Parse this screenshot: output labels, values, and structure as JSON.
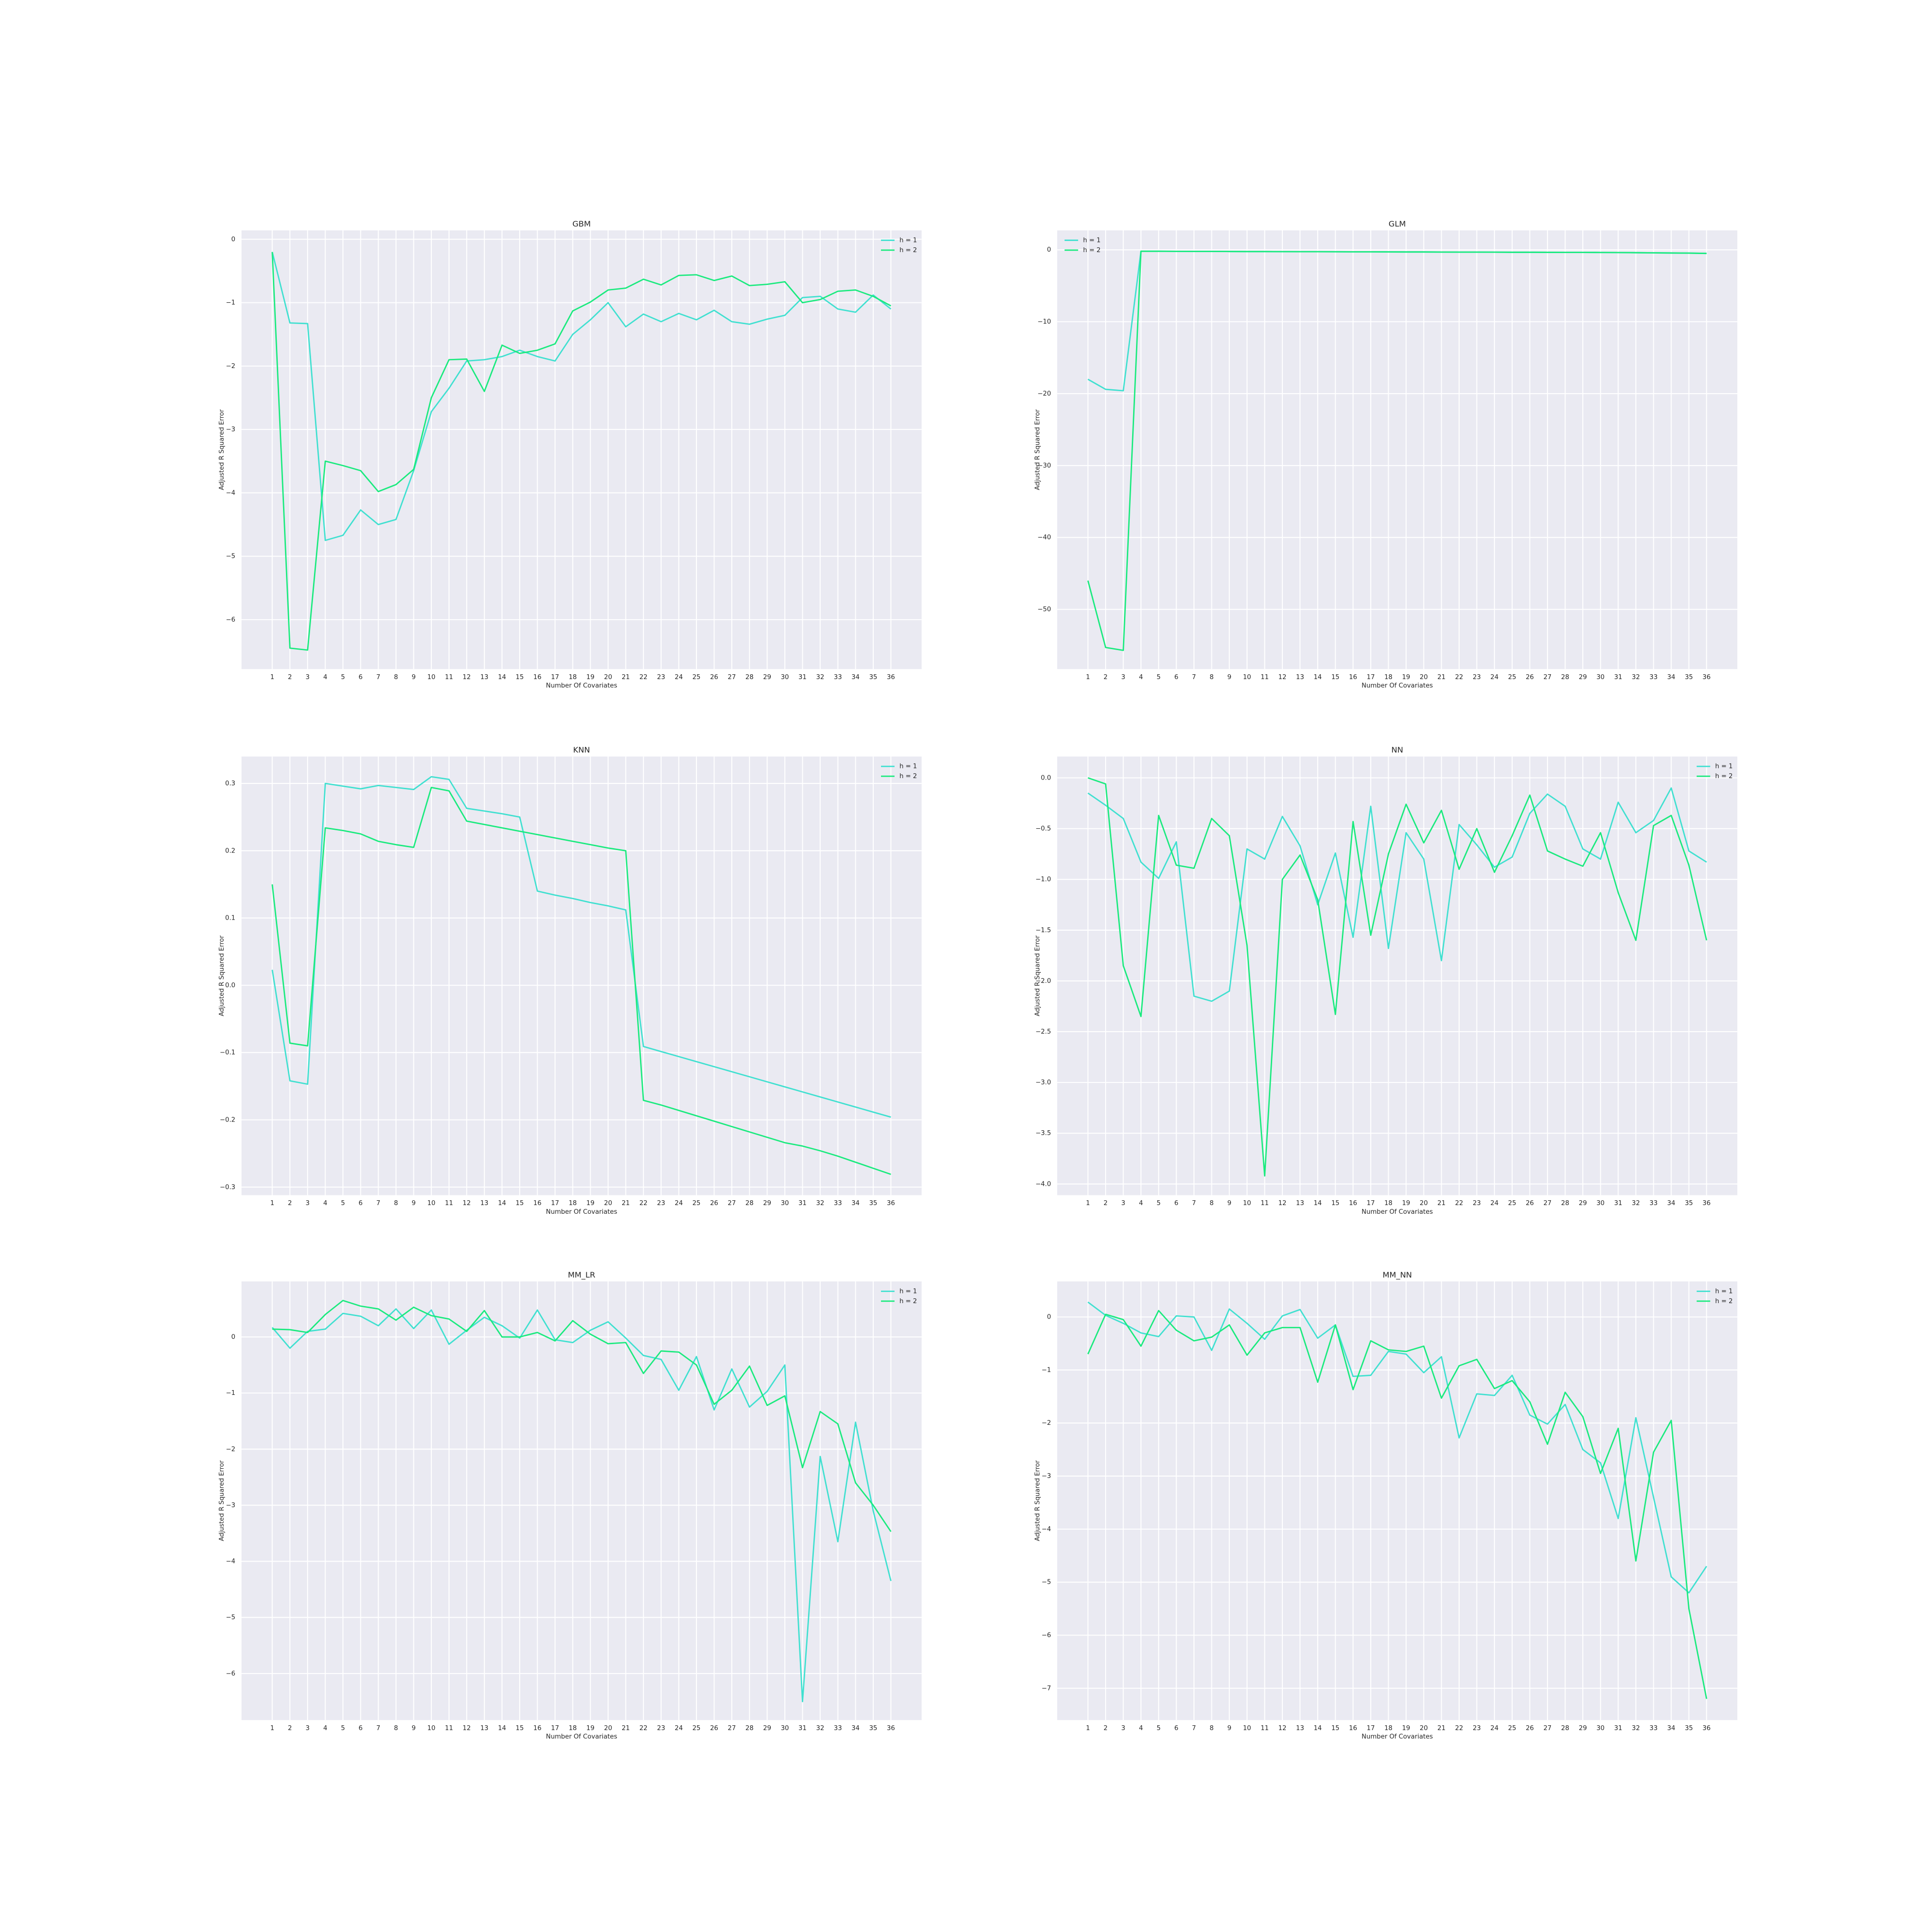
{
  "chart_data": [
    {
      "type": "line",
      "title": "GBM",
      "xlabel": "Number Of Covariates",
      "ylabel": "Adjusted R Squared Error",
      "legend": "upper right",
      "grid": true,
      "x": [
        1,
        2,
        3,
        4,
        5,
        6,
        7,
        8,
        9,
        10,
        11,
        12,
        13,
        14,
        15,
        16,
        17,
        18,
        19,
        20,
        21,
        22,
        23,
        24,
        25,
        26,
        27,
        28,
        29,
        30,
        31,
        32,
        33,
        34,
        35,
        36
      ],
      "xlim": [
        -0.74,
        37.74
      ],
      "xticks": [
        1,
        2,
        3,
        4,
        5,
        6,
        7,
        8,
        9,
        10,
        11,
        12,
        13,
        14,
        15,
        16,
        17,
        18,
        19,
        20,
        21,
        22,
        23,
        24,
        25,
        26,
        27,
        28,
        29,
        30,
        31,
        32,
        33,
        34,
        35,
        36
      ],
      "ylim": [
        -6.78,
        0.14
      ],
      "yticks": [
        0,
        {
          "value": -1,
          "label": "−1"
        },
        {
          "value": -2,
          "label": "−2"
        },
        {
          "value": -3,
          "label": "−3"
        },
        {
          "value": -4,
          "label": "−4"
        },
        {
          "value": -5,
          "label": "−5"
        },
        {
          "value": -6,
          "label": "−6"
        }
      ],
      "series": [
        {
          "name": "h = 1",
          "color": "#40e0d0",
          "values": [
            -0.2,
            -1.32,
            -1.33,
            -4.75,
            -4.67,
            -4.27,
            -4.5,
            -4.42,
            -3.65,
            -2.72,
            -2.35,
            -1.92,
            -1.9,
            -1.85,
            -1.75,
            -1.85,
            -1.92,
            -1.5,
            -1.27,
            -1.0,
            -1.38,
            -1.18,
            -1.3,
            -1.17,
            -1.27,
            -1.12,
            -1.3,
            -1.34,
            -1.26,
            -1.2,
            -0.92,
            -0.9,
            -1.1,
            -1.15,
            -0.88,
            -1.1
          ]
        },
        {
          "name": "h = 2",
          "color": "#1aea7e",
          "values": [
            -0.2,
            -6.45,
            -6.48,
            -3.5,
            -3.57,
            -3.65,
            -3.98,
            -3.87,
            -3.63,
            -2.5,
            -1.9,
            -1.89,
            -2.4,
            -1.67,
            -1.8,
            -1.75,
            -1.65,
            -1.13,
            -0.99,
            -0.8,
            -0.77,
            -0.63,
            -0.72,
            -0.57,
            -0.56,
            -0.65,
            -0.58,
            -0.73,
            -0.71,
            -0.67,
            -1.0,
            -0.95,
            -0.82,
            -0.8,
            -0.9,
            -1.05
          ]
        }
      ]
    },
    {
      "type": "line",
      "title": "GLM",
      "xlabel": "Number Of Covariates",
      "ylabel": "Adjusted R Squared Error",
      "legend": "upper left",
      "grid": true,
      "x": [
        1,
        2,
        3,
        4,
        5,
        6,
        7,
        8,
        9,
        10,
        11,
        12,
        13,
        14,
        15,
        16,
        17,
        18,
        19,
        20,
        21,
        22,
        23,
        24,
        25,
        26,
        27,
        28,
        29,
        30,
        31,
        32,
        33,
        34,
        35,
        36
      ],
      "xlim": [
        -0.74,
        37.74
      ],
      "xticks": [
        1,
        2,
        3,
        4,
        5,
        6,
        7,
        8,
        9,
        10,
        11,
        12,
        13,
        14,
        15,
        16,
        17,
        18,
        19,
        20,
        21,
        22,
        23,
        24,
        25,
        26,
        27,
        28,
        29,
        30,
        31,
        32,
        33,
        34,
        35,
        36
      ],
      "ylim": [
        -58.3,
        2.7
      ],
      "yticks": [
        0,
        {
          "value": -10,
          "label": "−10"
        },
        {
          "value": -20,
          "label": "−20"
        },
        {
          "value": -30,
          "label": "−30"
        },
        {
          "value": -40,
          "label": "−40"
        },
        {
          "value": -50,
          "label": "−50"
        }
      ],
      "series": [
        {
          "name": "h = 1",
          "color": "#40e0d0",
          "values": [
            -18,
            -19.4,
            -19.6,
            -0.2,
            -0.2,
            -0.21,
            -0.22,
            -0.22,
            -0.23,
            -0.24,
            -0.24,
            -0.25,
            -0.26,
            -0.26,
            -0.27,
            -0.28,
            -0.28,
            -0.29,
            -0.3,
            -0.3,
            -0.31,
            -0.32,
            -0.32,
            -0.33,
            -0.34,
            -0.34,
            -0.35,
            -0.36,
            -0.36,
            -0.37,
            -0.38,
            -0.4,
            -0.42,
            -0.44,
            -0.46,
            -0.5
          ]
        },
        {
          "name": "h = 2",
          "color": "#1aea7e",
          "values": [
            -46,
            -55.3,
            -55.7,
            -0.2,
            -0.2,
            -0.21,
            -0.22,
            -0.22,
            -0.23,
            -0.24,
            -0.24,
            -0.25,
            -0.26,
            -0.26,
            -0.27,
            -0.28,
            -0.28,
            -0.29,
            -0.3,
            -0.3,
            -0.31,
            -0.32,
            -0.32,
            -0.33,
            -0.34,
            -0.34,
            -0.35,
            -0.36,
            -0.36,
            -0.37,
            -0.38,
            -0.4,
            -0.42,
            -0.44,
            -0.46,
            -0.5
          ]
        }
      ]
    },
    {
      "type": "line",
      "title": "KNN",
      "xlabel": "Number Of Covariates",
      "ylabel": "Adjusted R Squared Error",
      "legend": "upper right",
      "grid": true,
      "x": [
        1,
        2,
        3,
        4,
        5,
        6,
        7,
        8,
        9,
        10,
        11,
        12,
        13,
        14,
        15,
        16,
        17,
        18,
        19,
        20,
        21,
        22,
        23,
        24,
        25,
        26,
        27,
        28,
        29,
        30,
        31,
        32,
        33,
        34,
        35,
        36
      ],
      "xlim": [
        -0.74,
        37.74
      ],
      "xticks": [
        1,
        2,
        3,
        4,
        5,
        6,
        7,
        8,
        9,
        10,
        11,
        12,
        13,
        14,
        15,
        16,
        17,
        18,
        19,
        20,
        21,
        22,
        23,
        24,
        25,
        26,
        27,
        28,
        29,
        30,
        31,
        32,
        33,
        34,
        35,
        36
      ],
      "ylim": [
        -0.312,
        0.34
      ],
      "yticks": [
        0.3,
        0.2,
        0.1,
        {
          "value": 0,
          "label": "0.0"
        },
        {
          "value": -0.1,
          "label": "−0.1"
        },
        {
          "value": -0.2,
          "label": "−0.2"
        },
        {
          "value": -0.3,
          "label": "−0.3"
        }
      ],
      "series": [
        {
          "name": "h = 1",
          "color": "#40e0d0",
          "values": [
            0.023,
            -0.142,
            -0.147,
            0.3,
            0.296,
            0.292,
            0.297,
            0.294,
            0.291,
            0.31,
            0.306,
            0.263,
            0.259,
            0.255,
            0.25,
            0.14,
            0.134,
            0.129,
            0.123,
            0.118,
            0.112,
            -0.091,
            -0.0985,
            -0.106,
            -0.1135,
            -0.121,
            -0.1285,
            -0.136,
            -0.1435,
            -0.151,
            -0.1585,
            -0.166,
            -0.1735,
            -0.181,
            -0.1885,
            -0.196
          ]
        },
        {
          "name": "h = 2",
          "color": "#1aea7e",
          "values": [
            0.15,
            -0.086,
            -0.09,
            0.234,
            0.23,
            0.225,
            0.214,
            0.209,
            0.205,
            0.294,
            0.289,
            0.244,
            0.239,
            0.234,
            0.229,
            0.224,
            0.219,
            0.214,
            0.209,
            0.204,
            0.2,
            -0.171,
            -0.178,
            -0.186,
            -0.194,
            -0.202,
            -0.21,
            -0.218,
            -0.226,
            -0.234,
            -0.239,
            -0.246,
            -0.254,
            -0.263,
            -0.272,
            -0.281
          ]
        }
      ]
    },
    {
      "type": "line",
      "title": "NN",
      "xlabel": "Number Of Covariates",
      "ylabel": "Adjusted R Squared Error",
      "legend": "upper right",
      "grid": true,
      "x": [
        1,
        2,
        3,
        4,
        5,
        6,
        7,
        8,
        9,
        10,
        11,
        12,
        13,
        14,
        15,
        16,
        17,
        18,
        19,
        20,
        21,
        22,
        23,
        24,
        25,
        26,
        27,
        28,
        29,
        30,
        31,
        32,
        33,
        34,
        35,
        36
      ],
      "xlim": [
        -0.74,
        37.74
      ],
      "xticks": [
        1,
        2,
        3,
        4,
        5,
        6,
        7,
        8,
        9,
        10,
        11,
        12,
        13,
        14,
        15,
        16,
        17,
        18,
        19,
        20,
        21,
        22,
        23,
        24,
        25,
        26,
        27,
        28,
        29,
        30,
        31,
        32,
        33,
        34,
        35,
        36
      ],
      "ylim": [
        -4.11,
        0.21
      ],
      "yticks": [
        {
          "value": 0,
          "label": "0.0"
        },
        {
          "value": -0.5,
          "label": "−0.5"
        },
        {
          "value": -1,
          "label": "−1.0"
        },
        {
          "value": -1.5,
          "label": "−1.5"
        },
        {
          "value": -2,
          "label": "−2.0"
        },
        {
          "value": -2.5,
          "label": "−2.5"
        },
        {
          "value": -3,
          "label": "−3.0"
        },
        {
          "value": -3.5,
          "label": "−3.5"
        },
        {
          "value": -4,
          "label": "−4.0"
        }
      ],
      "series": [
        {
          "name": "h = 1",
          "color": "#40e0d0",
          "values": [
            -0.15,
            -0.27,
            -0.4,
            -0.83,
            -0.99,
            -0.63,
            -2.15,
            -2.2,
            -2.1,
            -0.7,
            -0.8,
            -0.38,
            -0.67,
            -1.25,
            -0.74,
            -1.57,
            -0.28,
            -1.68,
            -0.54,
            -0.8,
            -1.8,
            -0.46,
            -0.66,
            -0.88,
            -0.78,
            -0.35,
            -0.16,
            -0.28,
            -0.7,
            -0.8,
            -0.24,
            -0.54,
            -0.42,
            -0.1,
            -0.72,
            -0.83
          ]
        },
        {
          "name": "h = 2",
          "color": "#1aea7e",
          "values": [
            0,
            -0.06,
            -1.85,
            -2.35,
            -0.37,
            -0.86,
            -0.89,
            -0.4,
            -0.57,
            -1.65,
            -3.92,
            -1.0,
            -0.76,
            -1.2,
            -2.33,
            -0.43,
            -1.55,
            -0.75,
            -0.26,
            -0.64,
            -0.32,
            -0.9,
            -0.5,
            -0.93,
            -0.57,
            -0.17,
            -0.72,
            -0.8,
            -0.87,
            -0.54,
            -1.13,
            -1.6,
            -0.47,
            -0.37,
            -0.86,
            -1.6
          ]
        }
      ]
    },
    {
      "type": "line",
      "title": "MM_LR",
      "xlabel": "Number Of Covariates",
      "ylabel": "Adjusted R Squared Error",
      "legend": "upper right",
      "grid": true,
      "x": [
        1,
        2,
        3,
        4,
        5,
        6,
        7,
        8,
        9,
        10,
        11,
        12,
        13,
        14,
        15,
        16,
        17,
        18,
        19,
        20,
        21,
        22,
        23,
        24,
        25,
        26,
        27,
        28,
        29,
        30,
        31,
        32,
        33,
        34,
        35,
        36
      ],
      "xlim": [
        -0.74,
        37.74
      ],
      "xticks": [
        1,
        2,
        3,
        4,
        5,
        6,
        7,
        8,
        9,
        10,
        11,
        12,
        13,
        14,
        15,
        16,
        17,
        18,
        19,
        20,
        21,
        22,
        23,
        24,
        25,
        26,
        27,
        28,
        29,
        30,
        31,
        32,
        33,
        34,
        35,
        36
      ],
      "ylim": [
        -6.83,
        0.99
      ],
      "yticks": [
        0,
        {
          "value": -1,
          "label": "−1"
        },
        {
          "value": -2,
          "label": "−2"
        },
        {
          "value": -3,
          "label": "−3"
        },
        {
          "value": -4,
          "label": "−4"
        },
        {
          "value": -5,
          "label": "−5"
        },
        {
          "value": -6,
          "label": "−6"
        }
      ],
      "series": [
        {
          "name": "h = 1",
          "color": "#40e0d0",
          "values": [
            0.17,
            -0.2,
            0.1,
            0.14,
            0.42,
            0.37,
            0.2,
            0.5,
            0.15,
            0.48,
            -0.13,
            0.12,
            0.35,
            0.2,
            -0.02,
            0.48,
            -0.05,
            -0.1,
            0.12,
            0.27,
            -0.02,
            -0.33,
            -0.4,
            -0.95,
            -0.35,
            -1.3,
            -0.57,
            -1.25,
            -0.97,
            -0.5,
            -6.5,
            -2.13,
            -3.65,
            -1.52,
            -3.1,
            -4.35
          ]
        },
        {
          "name": "h = 2",
          "color": "#1aea7e",
          "values": [
            0.14,
            0.13,
            0.08,
            0.4,
            0.65,
            0.55,
            0.5,
            0.3,
            0.53,
            0.38,
            0.32,
            0.1,
            0.47,
            0,
            0,
            0.08,
            -0.07,
            0.29,
            0.05,
            -0.12,
            -0.1,
            -0.65,
            -0.25,
            -0.27,
            -0.5,
            -1.2,
            -0.95,
            -0.52,
            -1.22,
            -1.05,
            -2.33,
            -1.33,
            -1.55,
            -2.6,
            -3.0,
            -3.47
          ]
        }
      ]
    },
    {
      "type": "line",
      "title": "MM_NN",
      "xlabel": "Number Of Covariates",
      "ylabel": "Adjusted R Squared Error",
      "legend": "upper right",
      "grid": true,
      "x": [
        1,
        2,
        3,
        4,
        5,
        6,
        7,
        8,
        9,
        10,
        11,
        12,
        13,
        14,
        15,
        16,
        17,
        18,
        19,
        20,
        21,
        22,
        23,
        24,
        25,
        26,
        27,
        28,
        29,
        30,
        31,
        32,
        33,
        34,
        35,
        36
      ],
      "xlim": [
        -0.74,
        37.74
      ],
      "xticks": [
        1,
        2,
        3,
        4,
        5,
        6,
        7,
        8,
        9,
        10,
        11,
        12,
        13,
        14,
        15,
        16,
        17,
        18,
        19,
        20,
        21,
        22,
        23,
        24,
        25,
        26,
        27,
        28,
        29,
        30,
        31,
        32,
        33,
        34,
        35,
        36
      ],
      "ylim": [
        -7.6,
        0.67
      ],
      "yticks": [
        0,
        {
          "value": -1,
          "label": "−1"
        },
        {
          "value": -2,
          "label": "−2"
        },
        {
          "value": -3,
          "label": "−3"
        },
        {
          "value": -4,
          "label": "−4"
        },
        {
          "value": -5,
          "label": "−5"
        },
        {
          "value": -6,
          "label": "−6"
        },
        {
          "value": -7,
          "label": "−7"
        }
      ],
      "series": [
        {
          "name": "h = 1",
          "color": "#40e0d0",
          "values": [
            0.28,
            0.03,
            -0.12,
            -0.3,
            -0.37,
            0.02,
            0,
            -0.63,
            0.15,
            -0.12,
            -0.42,
            0.02,
            0.14,
            -0.4,
            -0.15,
            -1.12,
            -1.1,
            -0.65,
            -0.7,
            -1.05,
            -0.75,
            -2.28,
            -1.45,
            -1.48,
            -1.1,
            -1.85,
            -2.02,
            -1.65,
            -2.5,
            -2.75,
            -3.8,
            -1.9,
            -3.4,
            -4.9,
            -5.2,
            -4.7
          ]
        },
        {
          "name": "h = 2",
          "color": "#1aea7e",
          "values": [
            -0.7,
            0.05,
            -0.05,
            -0.55,
            0.12,
            -0.25,
            -0.45,
            -0.38,
            -0.15,
            -0.72,
            -0.3,
            -0.2,
            -0.2,
            -1.23,
            -0.15,
            -1.37,
            -0.45,
            -0.62,
            -0.65,
            -0.55,
            -1.53,
            -0.92,
            -0.8,
            -1.35,
            -1.2,
            -1.6,
            -2.4,
            -1.42,
            -1.88,
            -2.95,
            -2.1,
            -4.6,
            -2.55,
            -1.95,
            -5.5,
            -7.2
          ]
        }
      ]
    }
  ]
}
